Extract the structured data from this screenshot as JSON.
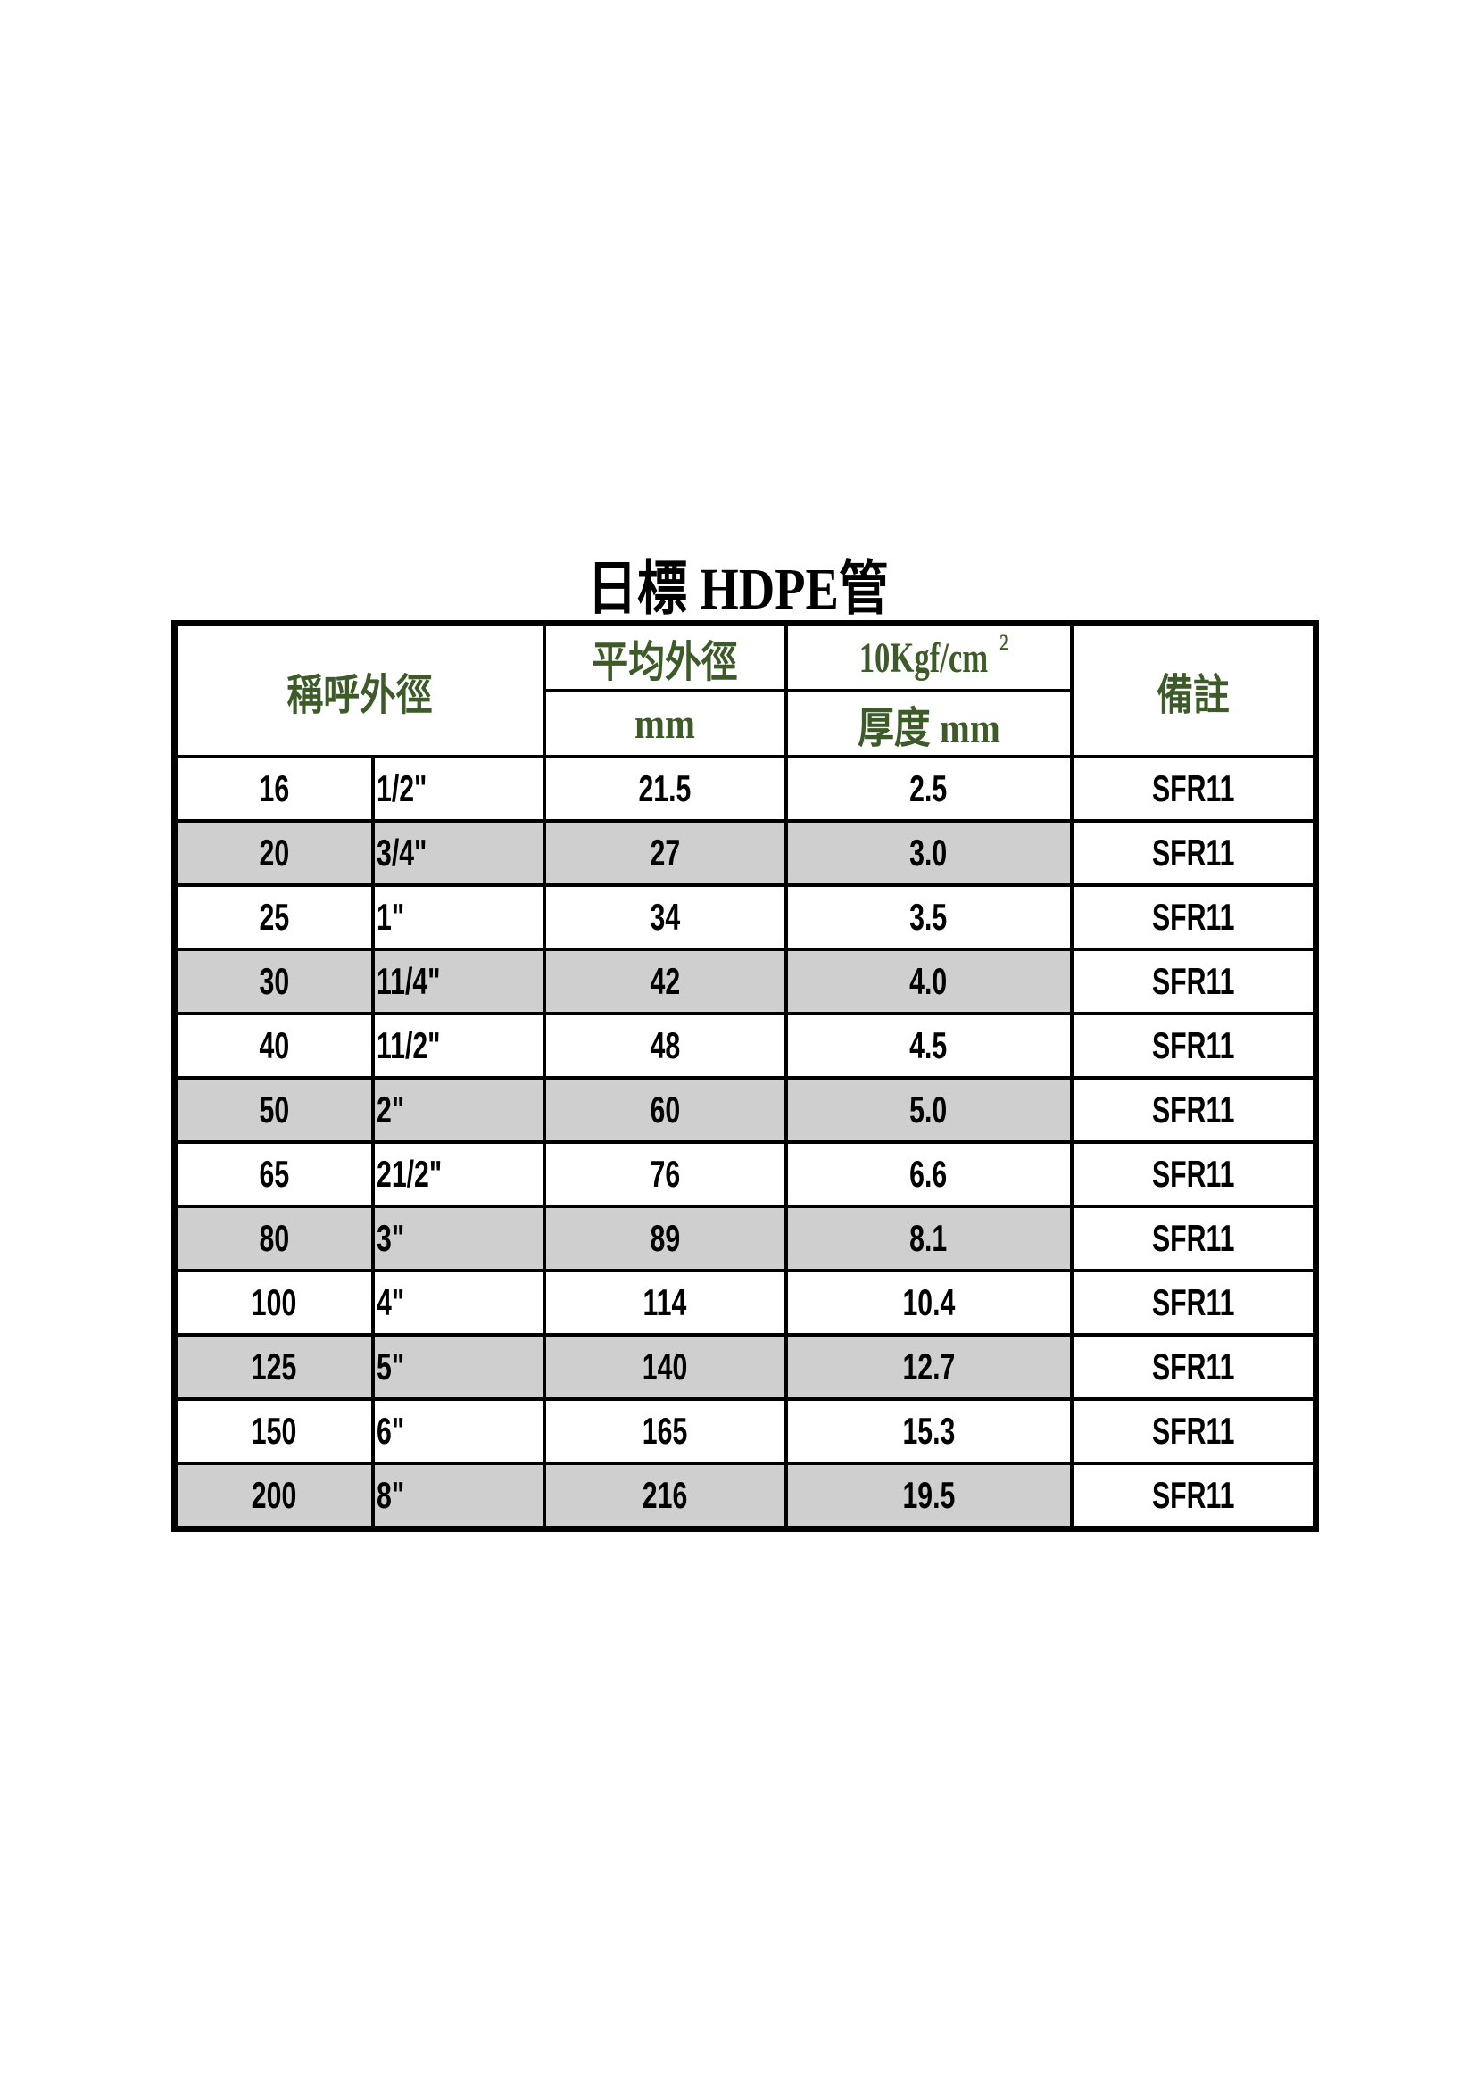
{
  "title": "日標 HDPE管",
  "header": {
    "nominal": "稱呼外徑",
    "avg_od": "平均外徑",
    "avg_od_unit": "mm",
    "pressure": "10Kgf/cm",
    "pressure_sup": "2",
    "thickness": "厚度 mm",
    "remark": "備註"
  },
  "colors": {
    "header_text": "#3d5a29",
    "stripe": "#cfcfcf",
    "border": "#000000"
  },
  "rows": [
    {
      "mm": "16",
      "inch": "1/2\"",
      "od": "21.5",
      "thk": "2.5",
      "remark": "SFR11"
    },
    {
      "mm": "20",
      "inch": "3/4\"",
      "od": "27",
      "thk": "3.0",
      "remark": "SFR11"
    },
    {
      "mm": "25",
      "inch": "1\"",
      "od": "34",
      "thk": "3.5",
      "remark": "SFR11"
    },
    {
      "mm": "30",
      "inch": "11/4\"",
      "od": "42",
      "thk": "4.0",
      "remark": "SFR11"
    },
    {
      "mm": "40",
      "inch": "11/2\"",
      "od": "48",
      "thk": "4.5",
      "remark": "SFR11"
    },
    {
      "mm": "50",
      "inch": "2\"",
      "od": "60",
      "thk": "5.0",
      "remark": "SFR11"
    },
    {
      "mm": "65",
      "inch": "21/2\"",
      "od": "76",
      "thk": "6.6",
      "remark": "SFR11"
    },
    {
      "mm": "80",
      "inch": "3\"",
      "od": "89",
      "thk": "8.1",
      "remark": "SFR11"
    },
    {
      "mm": "100",
      "inch": "4\"",
      "od": "114",
      "thk": "10.4",
      "remark": "SFR11"
    },
    {
      "mm": "125",
      "inch": "5\"",
      "od": "140",
      "thk": "12.7",
      "remark": "SFR11"
    },
    {
      "mm": "150",
      "inch": "6\"",
      "od": "165",
      "thk": "15.3",
      "remark": "SFR11"
    },
    {
      "mm": "200",
      "inch": "8\"",
      "od": "216",
      "thk": "19.5",
      "remark": "SFR11"
    }
  ]
}
